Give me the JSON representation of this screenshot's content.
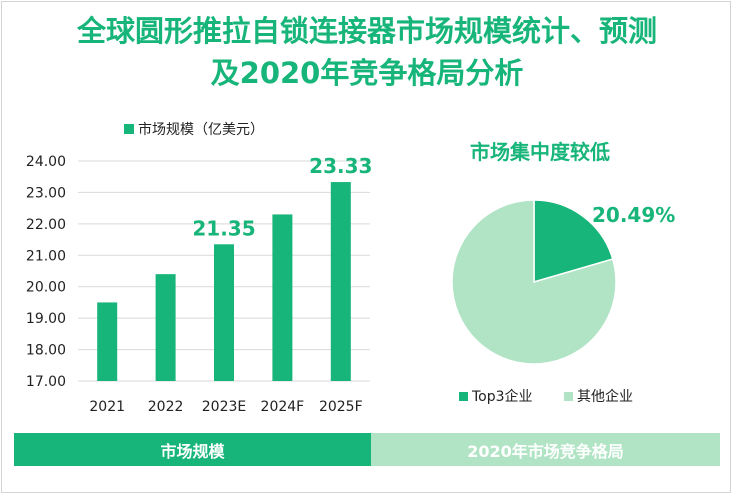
{
  "title_line1": "全球圆形推拉自锁连接器市场规模统计、预测",
  "title_line2": "及2020年竞争格局分析",
  "colors": {
    "accent": "#17b57a",
    "light": "#b0e4c4"
  },
  "chart_data": [
    {
      "type": "bar",
      "legend": "市场规模（亿美元）",
      "categories": [
        "2021",
        "2022",
        "2023E",
        "2024F",
        "2025F"
      ],
      "values": [
        19.5,
        20.4,
        21.35,
        22.3,
        23.33
      ],
      "data_labels": [
        "",
        "",
        "21.35",
        "",
        "23.33"
      ],
      "ylim": [
        17,
        24
      ],
      "yticks": [
        "17.00",
        "18.00",
        "19.00",
        "20.00",
        "21.00",
        "22.00",
        "23.00",
        "24.00"
      ],
      "grid": true,
      "legend_position": "top"
    },
    {
      "type": "pie",
      "title": "市场集中度较低",
      "labels": [
        "Top3企业",
        "其他企业"
      ],
      "values": [
        20.49,
        79.51
      ],
      "data_label": "20.49%",
      "legend_position": "bottom"
    }
  ],
  "footer": {
    "left": "市场规模",
    "right": "2020年市场竞争格局"
  }
}
